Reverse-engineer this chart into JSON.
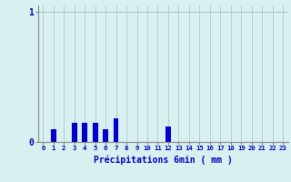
{
  "hours": [
    0,
    1,
    2,
    3,
    4,
    5,
    6,
    7,
    8,
    9,
    10,
    11,
    12,
    13,
    14,
    15,
    16,
    17,
    18,
    19,
    20,
    21,
    22,
    23
  ],
  "values": [
    0,
    0.1,
    0,
    0.15,
    0.15,
    0.15,
    0.1,
    0.18,
    0,
    0.0,
    0,
    0,
    0.12,
    0,
    0,
    0,
    0,
    0,
    0,
    0,
    0,
    0,
    0,
    0
  ],
  "bar_color": "#0000cc",
  "background_color": "#d8f0f0",
  "grid_color": "#aacccc",
  "axis_color": "#888888",
  "text_color": "#0000bb",
  "xlabel": "Précipitations 6min ( mm )",
  "ylim": [
    0,
    1.05
  ],
  "bar_width": 0.5
}
